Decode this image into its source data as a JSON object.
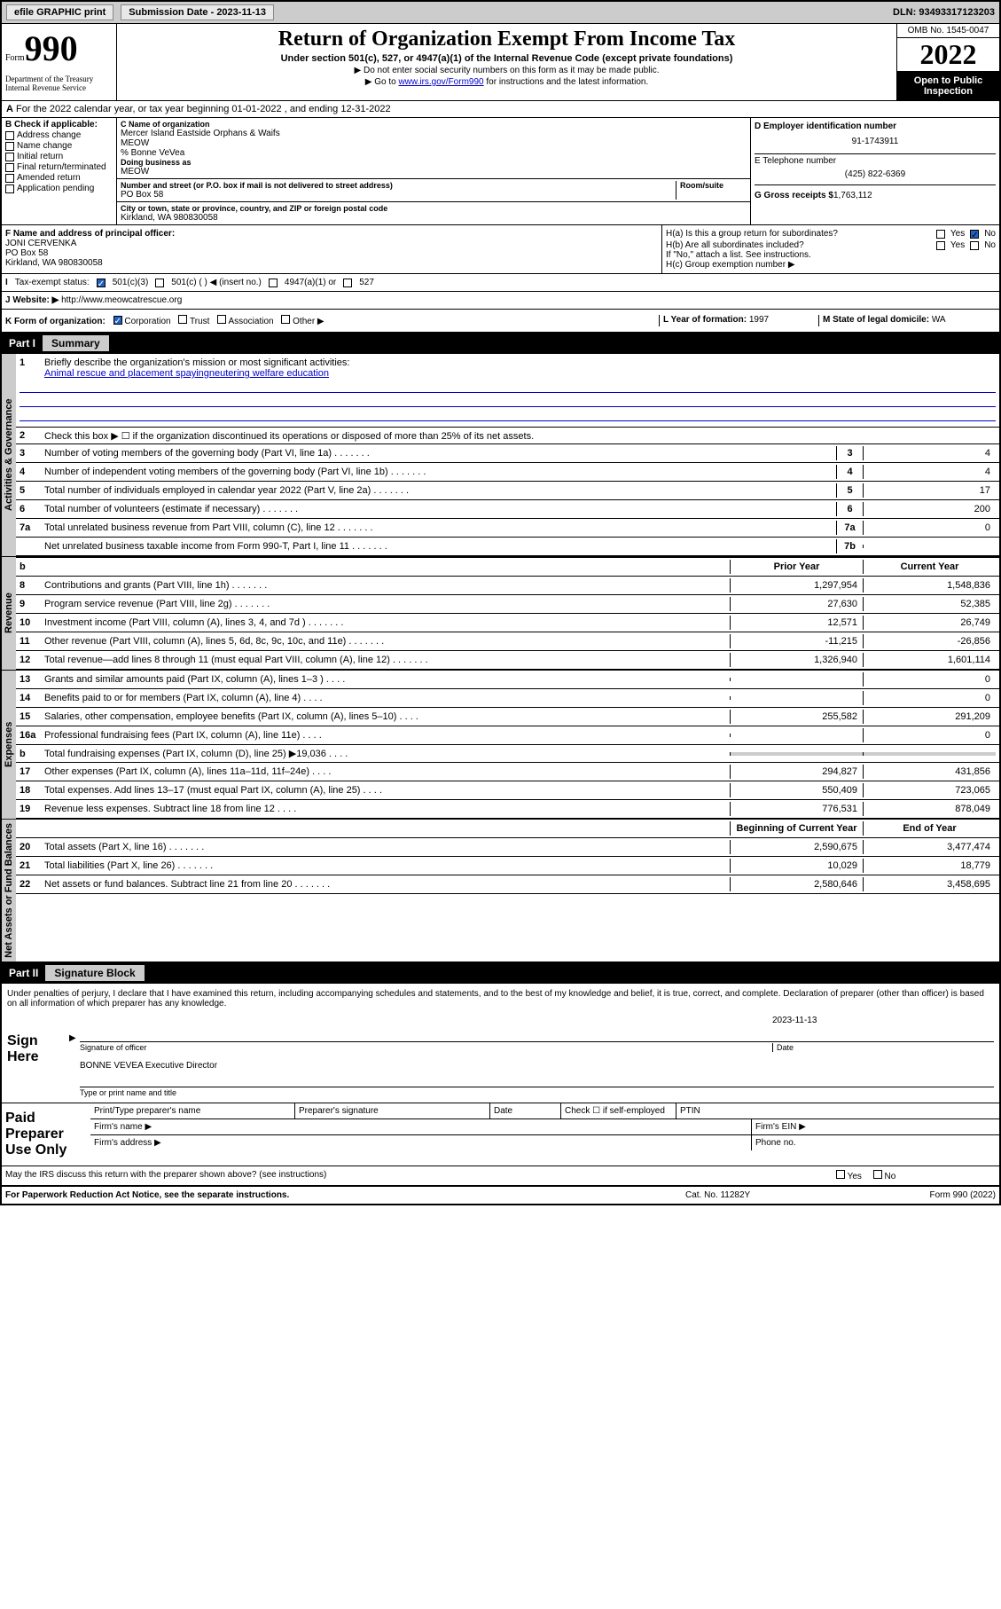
{
  "topbar": {
    "efile": "efile GRAPHIC print",
    "sub_label": "Submission Date - 2023-11-13",
    "dln": "DLN: 93493317123203"
  },
  "header": {
    "form_label": "Form",
    "form_number": "990",
    "title": "Return of Organization Exempt From Income Tax",
    "subtitle": "Under section 501(c), 527, or 4947(a)(1) of the Internal Revenue Code (except private foundations)",
    "note1": "▶ Do not enter social security numbers on this form as it may be made public.",
    "note2_prefix": "▶ Go to ",
    "note2_link": "www.irs.gov/Form990",
    "note2_suffix": " for instructions and the latest information.",
    "omb": "OMB No. 1545-0047",
    "year": "2022",
    "inspection": "Open to Public Inspection",
    "dept": "Department of the Treasury",
    "irs": "Internal Revenue Service"
  },
  "line_a": "For the 2022 calendar year, or tax year beginning 01-01-2022    , and ending 12-31-2022",
  "box_b": {
    "header": "B Check if applicable:",
    "opts": [
      "Address change",
      "Name change",
      "Initial return",
      "Final return/terminated",
      "Amended return",
      "Application pending"
    ]
  },
  "box_c": {
    "name_label": "C Name of organization",
    "name": "Mercer Island Eastside Orphans & Waifs",
    "name2": "MEOW",
    "care": "% Bonne VeVea",
    "dba_label": "Doing business as",
    "dba": "MEOW",
    "addr_label": "Number and street (or P.O. box if mail is not delivered to street address)",
    "room_label": "Room/suite",
    "addr": "PO Box 58",
    "city_label": "City or town, state or province, country, and ZIP or foreign postal code",
    "city": "Kirkland, WA  980830058"
  },
  "box_d": {
    "label": "D Employer identification number",
    "ein": "91-1743911",
    "phone_label": "E Telephone number",
    "phone": "(425) 822-6369",
    "gross_label": "G Gross receipts $",
    "gross": "1,763,112"
  },
  "box_f": {
    "label": "F Name and address of principal officer:",
    "name": "JONI CERVENKA",
    "addr1": "PO Box 58",
    "addr2": "Kirkland, WA  980830058"
  },
  "box_h": {
    "a_label": "H(a)  Is this a group return for subordinates?",
    "b_label": "H(b)  Are all subordinates included?",
    "b_note": "If \"No,\" attach a list. See instructions.",
    "c_label": "H(c)  Group exemption number ▶",
    "yes": "Yes",
    "no": "No"
  },
  "row_i": {
    "label": "Tax-exempt status:",
    "opt1": "501(c)(3)",
    "opt2": "501(c) (   ) ◀ (insert no.)",
    "opt3": "4947(a)(1) or",
    "opt4": "527"
  },
  "row_j": {
    "label": "Website: ▶",
    "value": "http://www.meowcatrescue.org"
  },
  "row_k": {
    "label": "K Form of organization:",
    "opts": [
      "Corporation",
      "Trust",
      "Association",
      "Other ▶"
    ],
    "year_label": "L Year of formation:",
    "year": "1997",
    "state_label": "M State of legal domicile:",
    "state": "WA"
  },
  "part1": {
    "label": "Part I",
    "title": "Summary"
  },
  "governance": {
    "label": "Activities & Governance",
    "line1_label": "Briefly describe the organization's mission or most significant activities:",
    "line1_val": "Animal rescue and placement spayingneutering welfare education",
    "line2": "Check this box ▶ ☐  if the organization discontinued its operations or disposed of more than 25% of its net assets.",
    "rows": [
      {
        "n": "3",
        "d": "Number of voting members of the governing body (Part VI, line 1a)",
        "c": "3",
        "v": "4"
      },
      {
        "n": "4",
        "d": "Number of independent voting members of the governing body (Part VI, line 1b)",
        "c": "4",
        "v": "4"
      },
      {
        "n": "5",
        "d": "Total number of individuals employed in calendar year 2022 (Part V, line 2a)",
        "c": "5",
        "v": "17"
      },
      {
        "n": "6",
        "d": "Total number of volunteers (estimate if necessary)",
        "c": "6",
        "v": "200"
      },
      {
        "n": "7a",
        "d": "Total unrelated business revenue from Part VIII, column (C), line 12",
        "c": "7a",
        "v": "0"
      },
      {
        "n": "",
        "d": "Net unrelated business taxable income from Form 990-T, Part I, line 11",
        "c": "7b",
        "v": ""
      }
    ]
  },
  "revenue": {
    "label": "Revenue",
    "header_prior": "Prior Year",
    "header_current": "Current Year",
    "rows": [
      {
        "n": "8",
        "d": "Contributions and grants (Part VIII, line 1h)",
        "p": "1,297,954",
        "c": "1,548,836"
      },
      {
        "n": "9",
        "d": "Program service revenue (Part VIII, line 2g)",
        "p": "27,630",
        "c": "52,385"
      },
      {
        "n": "10",
        "d": "Investment income (Part VIII, column (A), lines 3, 4, and 7d )",
        "p": "12,571",
        "c": "26,749"
      },
      {
        "n": "11",
        "d": "Other revenue (Part VIII, column (A), lines 5, 6d, 8c, 9c, 10c, and 11e)",
        "p": "-11,215",
        "c": "-26,856"
      },
      {
        "n": "12",
        "d": "Total revenue—add lines 8 through 11 (must equal Part VIII, column (A), line 12)",
        "p": "1,326,940",
        "c": "1,601,114"
      }
    ]
  },
  "expenses": {
    "label": "Expenses",
    "rows": [
      {
        "n": "13",
        "d": "Grants and similar amounts paid (Part IX, column (A), lines 1–3 )",
        "p": "",
        "c": "0"
      },
      {
        "n": "14",
        "d": "Benefits paid to or for members (Part IX, column (A), line 4)",
        "p": "",
        "c": "0"
      },
      {
        "n": "15",
        "d": "Salaries, other compensation, employee benefits (Part IX, column (A), lines 5–10)",
        "p": "255,582",
        "c": "291,209"
      },
      {
        "n": "16a",
        "d": "Professional fundraising fees (Part IX, column (A), line 11e)",
        "p": "",
        "c": "0"
      },
      {
        "n": "b",
        "d": "Total fundraising expenses (Part IX, column (D), line 25) ▶19,036",
        "p": "—shaded—",
        "c": "—shaded—"
      },
      {
        "n": "17",
        "d": "Other expenses (Part IX, column (A), lines 11a–11d, 11f–24e)",
        "p": "294,827",
        "c": "431,856"
      },
      {
        "n": "18",
        "d": "Total expenses. Add lines 13–17 (must equal Part IX, column (A), line 25)",
        "p": "550,409",
        "c": "723,065"
      },
      {
        "n": "19",
        "d": "Revenue less expenses. Subtract line 18 from line 12",
        "p": "776,531",
        "c": "878,049"
      }
    ]
  },
  "netassets": {
    "label": "Net Assets or Fund Balances",
    "header_begin": "Beginning of Current Year",
    "header_end": "End of Year",
    "rows": [
      {
        "n": "20",
        "d": "Total assets (Part X, line 16)",
        "p": "2,590,675",
        "c": "3,477,474"
      },
      {
        "n": "21",
        "d": "Total liabilities (Part X, line 26)",
        "p": "10,029",
        "c": "18,779"
      },
      {
        "n": "22",
        "d": "Net assets or fund balances. Subtract line 21 from line 20",
        "p": "2,580,646",
        "c": "3,458,695"
      }
    ]
  },
  "part2": {
    "label": "Part II",
    "title": "Signature Block",
    "declaration": "Under penalties of perjury, I declare that I have examined this return, including accompanying schedules and statements, and to the best of my knowledge and belief, it is true, correct, and complete. Declaration of preparer (other than officer) is based on all information of which preparer has any knowledge."
  },
  "sign": {
    "label": "Sign Here",
    "sig_label": "Signature of officer",
    "date_label": "Date",
    "date": "2023-11-13",
    "name": "BONNE VEVEA  Executive Director",
    "name_label": "Type or print name and title"
  },
  "paid": {
    "label": "Paid Preparer Use Only",
    "c1": "Print/Type preparer's name",
    "c2": "Preparer's signature",
    "c3": "Date",
    "c4": "Check ☐ if self-employed",
    "c5": "PTIN",
    "firm_name": "Firm's name    ▶",
    "firm_ein": "Firm's EIN ▶",
    "firm_addr": "Firm's address ▶",
    "phone": "Phone no."
  },
  "footer": {
    "discuss": "May the IRS discuss this return with the preparer shown above? (see instructions)",
    "paperwork": "For Paperwork Reduction Act Notice, see the separate instructions.",
    "cat": "Cat. No. 11282Y",
    "form": "Form 990 (2022)",
    "yes": "Yes",
    "no": "No"
  }
}
